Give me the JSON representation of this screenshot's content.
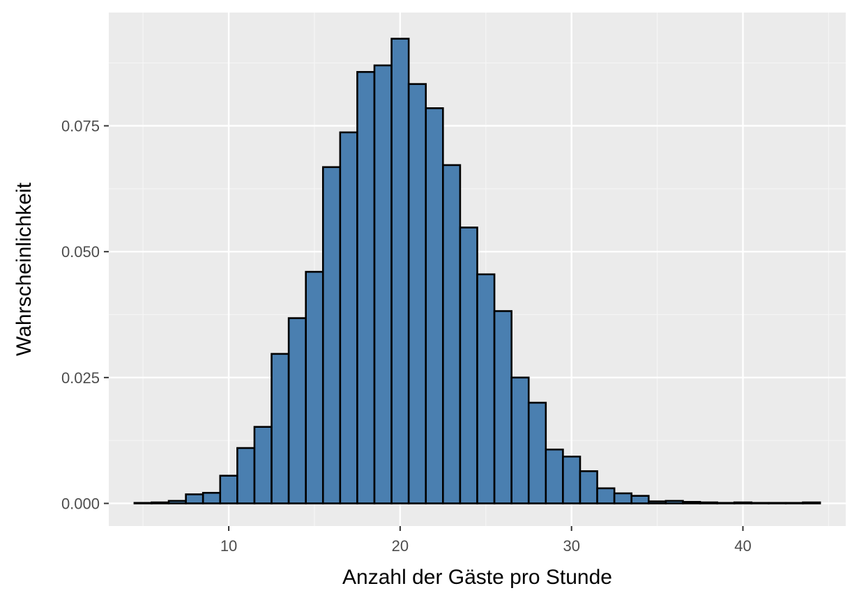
{
  "chart_data": {
    "type": "bar",
    "title": "",
    "xlabel": "Anzahl der Gäste pro Stunde",
    "ylabel": "Wahrscheinlichkeit",
    "xlim": [
      3,
      46
    ],
    "ylim": [
      -0.0045,
      0.0975
    ],
    "x_ticks": [
      10,
      20,
      30,
      40
    ],
    "x_tick_labels": [
      "10",
      "20",
      "30",
      "40"
    ],
    "y_ticks": [
      0,
      0.025,
      0.05,
      0.075
    ],
    "y_tick_labels": [
      "0.000",
      "0.025",
      "0.050",
      "0.075"
    ],
    "bin_width": 1,
    "x": [
      5,
      6,
      7,
      8,
      9,
      10,
      11,
      12,
      13,
      14,
      15,
      16,
      17,
      18,
      19,
      20,
      21,
      22,
      23,
      24,
      25,
      26,
      27,
      28,
      29,
      30,
      31,
      32,
      33,
      34,
      35,
      36,
      37,
      38,
      39,
      40,
      41,
      42,
      43,
      44
    ],
    "values": [
      0.0001,
      0.0002,
      0.0005,
      0.0018,
      0.0021,
      0.0055,
      0.011,
      0.0152,
      0.0297,
      0.0368,
      0.046,
      0.0668,
      0.0737,
      0.0857,
      0.087,
      0.0923,
      0.0833,
      0.0785,
      0.0672,
      0.0548,
      0.0455,
      0.0382,
      0.025,
      0.02,
      0.0107,
      0.0093,
      0.0064,
      0.003,
      0.002,
      0.0015,
      0.0004,
      0.0005,
      0.0003,
      0.0002,
      0.0001,
      0.0002,
      0.0001,
      0.0001,
      0.0001,
      0.0002
    ],
    "grid": true,
    "legend": "none",
    "colors": {
      "bar_fill": "#4a7fb0",
      "bar_stroke": "#000000",
      "panel_background": "#ebebeb",
      "grid_major": "#ffffff",
      "grid_minor": "#f5f5f5",
      "tick_text": "#4d4d4d",
      "tick_mark": "#333333"
    }
  }
}
